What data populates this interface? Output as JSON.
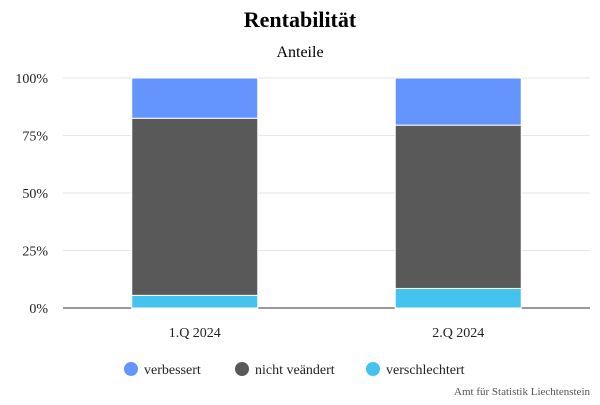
{
  "chart_data": {
    "type": "bar",
    "stacked": true,
    "title": "Rentabilität",
    "subtitle": "Anteile",
    "categories": [
      "1.Q 2024",
      "2.Q 2024"
    ],
    "yticks": [
      "0%",
      "25%",
      "50%",
      "75%",
      "100%"
    ],
    "ylim": [
      0,
      100
    ],
    "grid": true,
    "legend_position": "bottom",
    "series": [
      {
        "name": "verschlechtert",
        "color": "#44c3ee",
        "values": [
          5.5,
          8.5
        ]
      },
      {
        "name": "nicht veändert",
        "color": "#595959",
        "values": [
          77,
          71
        ]
      },
      {
        "name": "verbessert",
        "color": "#6495ff",
        "values": [
          17.5,
          20.5
        ]
      }
    ],
    "legend_order": [
      "verbessert",
      "nicht veändert",
      "verschlechtert"
    ]
  },
  "credit": "Amt für Statistik Liechtenstein"
}
